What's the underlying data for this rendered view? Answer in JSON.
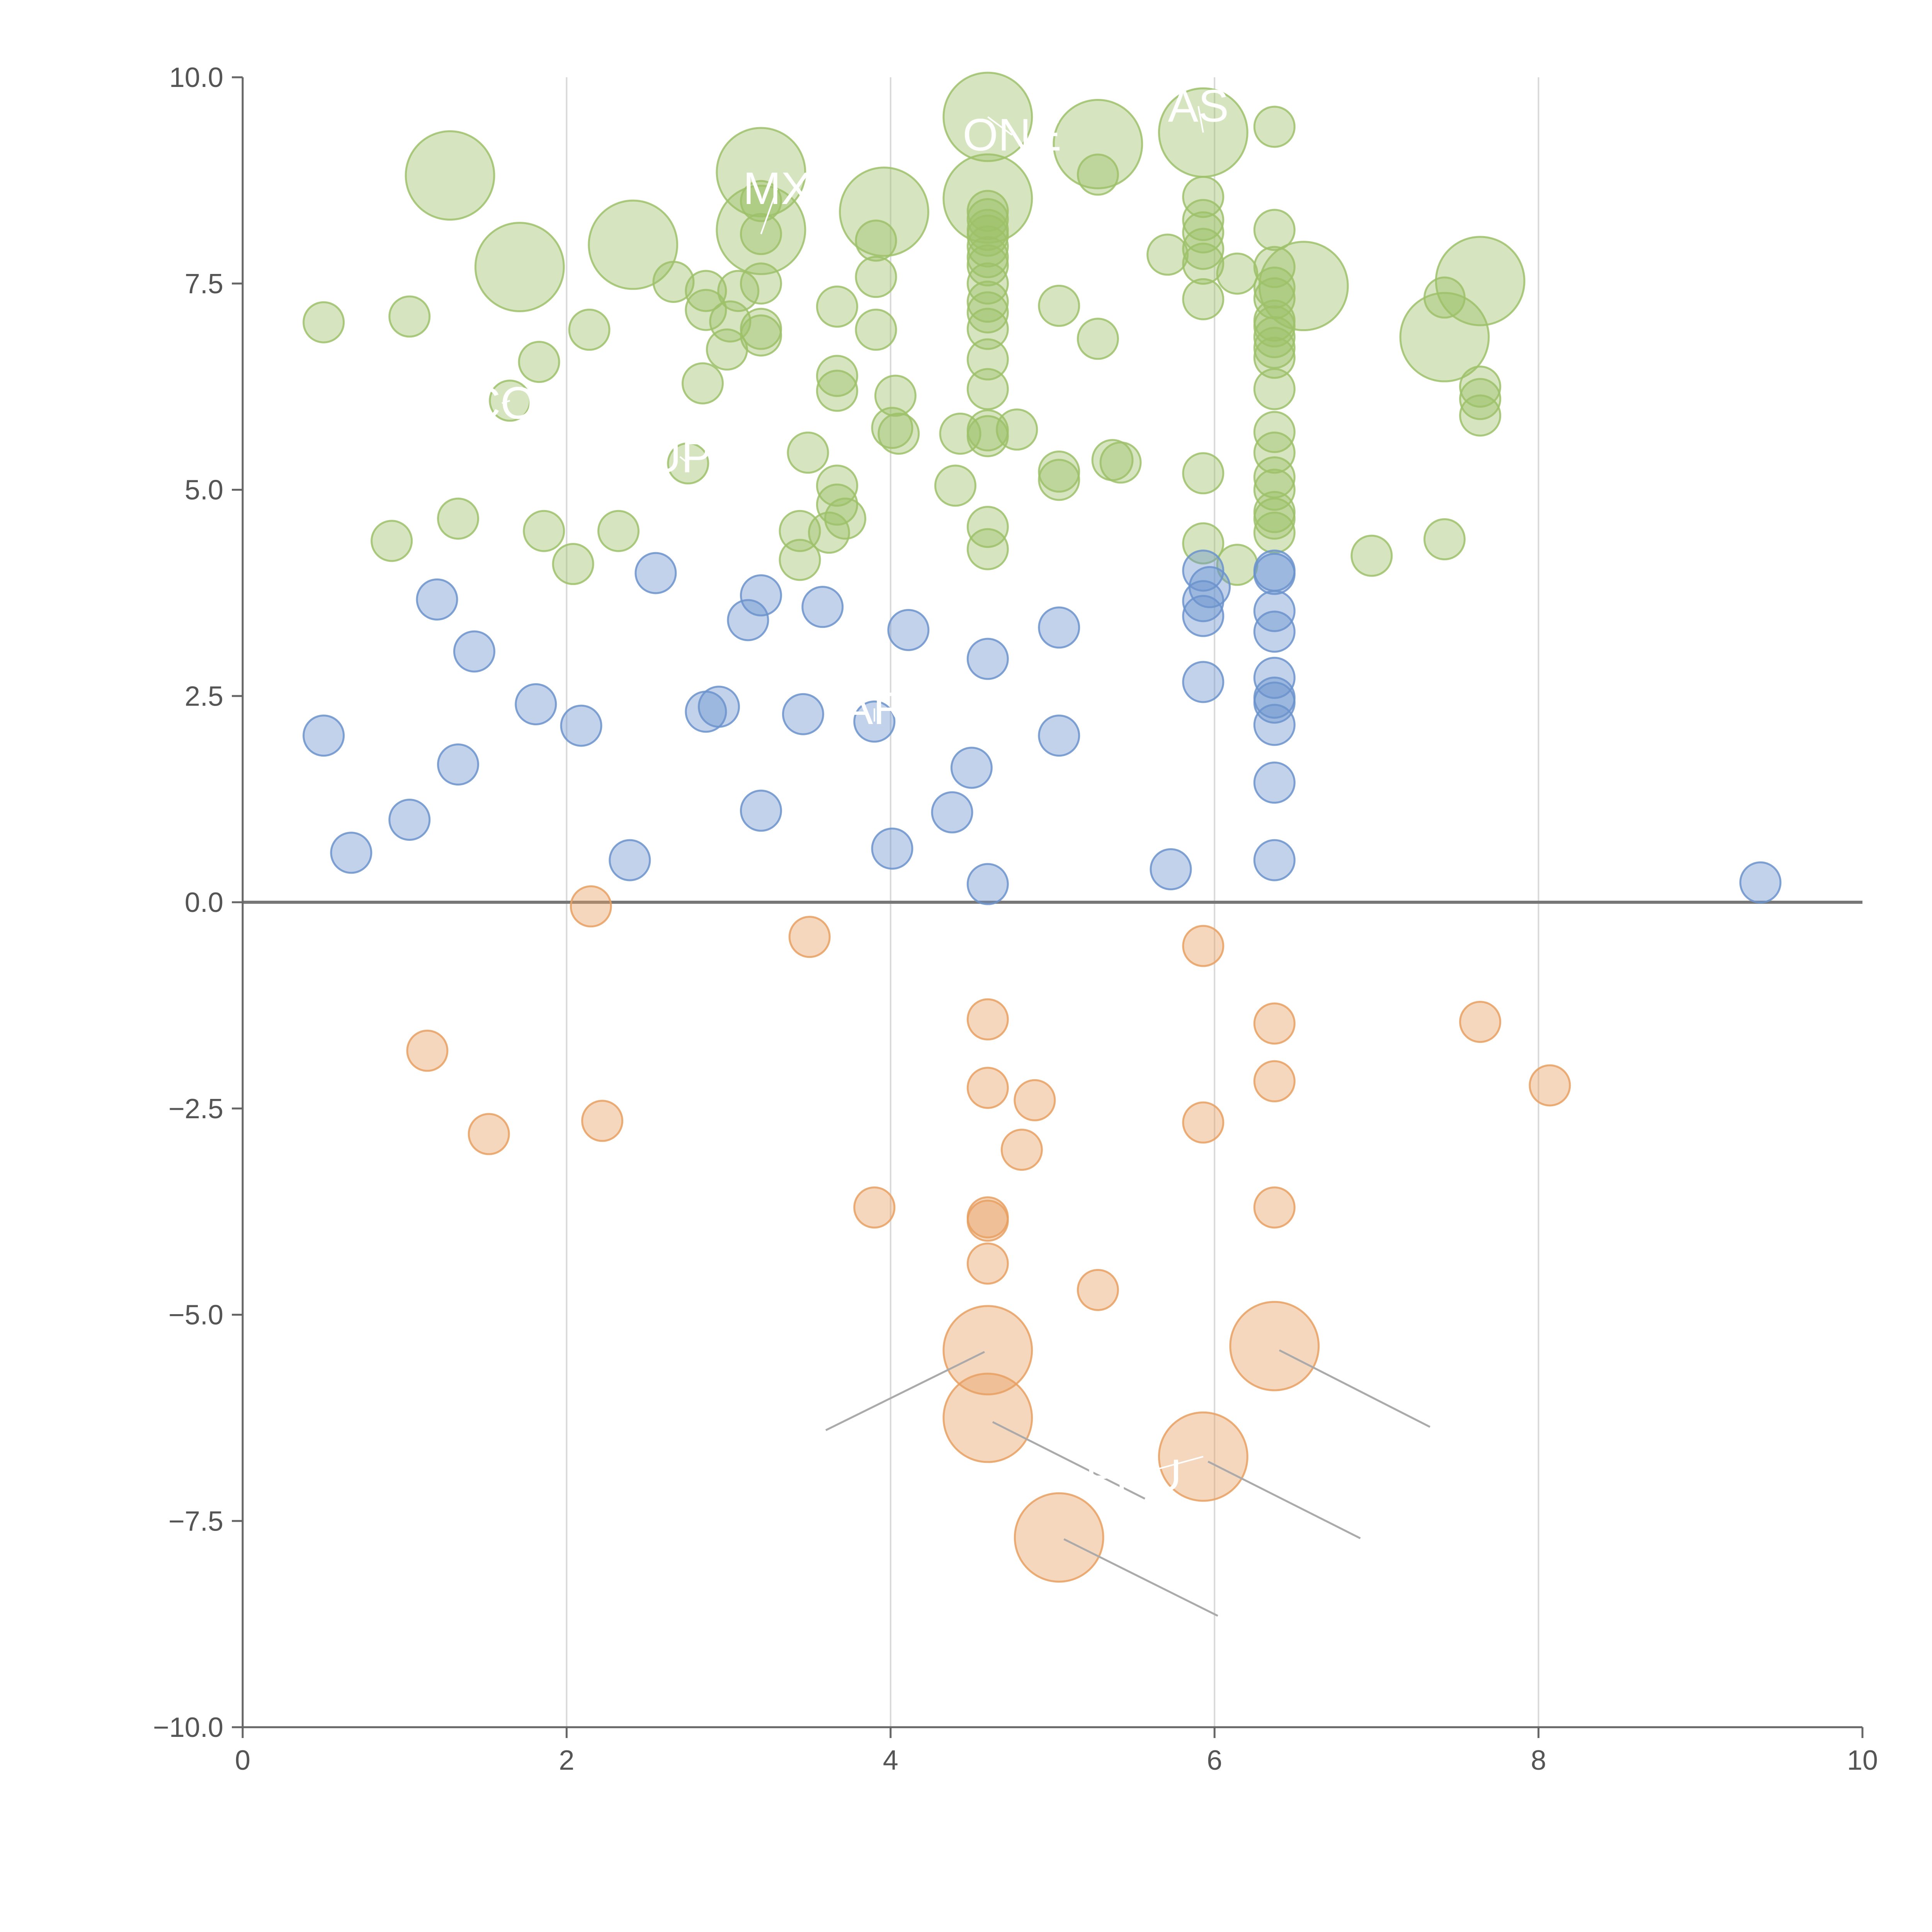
{
  "chart_data": {
    "type": "scatter",
    "title": "",
    "xlabel": "",
    "ylabel": "",
    "xlim": [
      0,
      10
    ],
    "ylim": [
      -10,
      10
    ],
    "x_ticks": [
      "0",
      "2",
      "4",
      "6",
      "8",
      "10"
    ],
    "y_ticks": [
      "10.0",
      "7.5",
      "5.0",
      "2.5",
      "0.0",
      "−2.5",
      "−5.0",
      "−7.5",
      "−10.0"
    ],
    "grid": "vertical",
    "zero_line": true,
    "colors": {
      "green": "#9dc16a",
      "blue": "#6b93cc",
      "orange": "#e8a062",
      "axis": "#666666",
      "grid": "#d9d9d9",
      "leader": "#aaaaaa"
    },
    "series": [
      {
        "name": "green",
        "color": "#9dc16a",
        "points": [
          [
            0.5,
            7.03,
            1
          ],
          [
            1.03,
            7.1,
            1
          ],
          [
            0.92,
            4.38,
            1
          ],
          [
            1.33,
            4.65,
            1
          ],
          [
            1.86,
            4.5,
            1
          ],
          [
            2.04,
            4.1,
            1
          ],
          [
            2.32,
            4.5,
            1
          ],
          [
            2.14,
            6.94,
            1
          ],
          [
            1.83,
            6.55,
            1
          ],
          [
            1.65,
            6.08,
            1
          ],
          [
            2.66,
            7.52,
            1
          ],
          [
            2.86,
            7.41,
            1
          ],
          [
            2.86,
            7.18,
            1
          ],
          [
            3.06,
            7.41,
            1
          ],
          [
            3.01,
            7.04,
            1
          ],
          [
            2.99,
            6.7,
            1
          ],
          [
            2.84,
            6.29,
            1
          ],
          [
            2.75,
            5.32,
            1
          ],
          [
            3.2,
            7.5,
            1
          ],
          [
            3.2,
            6.95,
            1
          ],
          [
            3.2,
            6.87,
            1
          ],
          [
            3.2,
            8.5,
            1
          ],
          [
            3.2,
            8.1,
            1
          ],
          [
            3.49,
            5.45,
            1
          ],
          [
            3.44,
            4.5,
            1
          ],
          [
            3.44,
            4.15,
            1
          ],
          [
            3.62,
            4.48,
            1
          ],
          [
            3.67,
            5.05,
            1
          ],
          [
            3.67,
            4.82,
            1
          ],
          [
            3.72,
            4.65,
            1
          ],
          [
            3.67,
            6.38,
            1
          ],
          [
            3.67,
            6.2,
            1
          ],
          [
            3.67,
            7.22,
            1
          ],
          [
            3.91,
            7.58,
            1
          ],
          [
            3.91,
            6.94,
            1
          ],
          [
            3.91,
            8.02,
            1
          ],
          [
            4.01,
            5.75,
            1
          ],
          [
            4.05,
            5.68,
            1
          ],
          [
            4.03,
            6.14,
            1
          ],
          [
            4.4,
            5.05,
            1
          ],
          [
            4.43,
            5.68,
            1
          ],
          [
            4.6,
            5.72,
            1
          ],
          [
            4.6,
            5.65,
            1
          ],
          [
            4.78,
            5.73,
            1
          ],
          [
            4.6,
            4.55,
            1
          ],
          [
            4.6,
            4.28,
            1
          ],
          [
            4.6,
            6.22,
            1
          ],
          [
            4.6,
            6.58,
            1
          ],
          [
            4.6,
            6.95,
            1
          ],
          [
            4.6,
            7.15,
            1
          ],
          [
            4.6,
            7.28,
            1
          ],
          [
            4.6,
            7.5,
            1
          ],
          [
            4.6,
            7.72,
            1
          ],
          [
            4.6,
            7.82,
            1
          ],
          [
            4.6,
            7.95,
            1
          ],
          [
            4.6,
            8.08,
            1
          ],
          [
            4.6,
            8.15,
            1
          ],
          [
            4.6,
            8.28,
            1
          ],
          [
            4.6,
            8.38,
            1
          ],
          [
            5.04,
            7.23,
            1
          ],
          [
            5.04,
            5.22,
            1
          ],
          [
            5.04,
            5.12,
            1
          ],
          [
            5.28,
            6.83,
            1
          ],
          [
            5.28,
            8.82,
            1
          ],
          [
            5.37,
            5.36,
            1
          ],
          [
            5.42,
            5.33,
            1
          ],
          [
            5.71,
            7.85,
            1
          ],
          [
            5.93,
            7.31,
            1
          ],
          [
            5.93,
            7.74,
            1
          ],
          [
            5.93,
            7.92,
            1
          ],
          [
            5.93,
            8.12,
            1
          ],
          [
            5.93,
            8.27,
            1
          ],
          [
            5.93,
            8.55,
            1
          ],
          [
            5.93,
            5.2,
            1
          ],
          [
            5.93,
            4.35,
            1
          ],
          [
            6.14,
            4.09,
            1
          ],
          [
            6.14,
            7.62,
            1
          ],
          [
            6.37,
            9.4,
            1
          ],
          [
            6.37,
            8.15,
            1
          ],
          [
            6.37,
            7.7,
            1
          ],
          [
            6.37,
            7.45,
            1
          ],
          [
            6.37,
            7.32,
            1
          ],
          [
            6.37,
            7.05,
            1
          ],
          [
            6.37,
            6.98,
            1
          ],
          [
            6.37,
            6.85,
            1
          ],
          [
            6.37,
            6.72,
            1
          ],
          [
            6.37,
            6.6,
            1
          ],
          [
            6.37,
            6.22,
            1
          ],
          [
            6.37,
            5.7,
            1
          ],
          [
            6.37,
            5.45,
            1
          ],
          [
            6.37,
            5.15,
            1
          ],
          [
            6.37,
            5.0,
            1
          ],
          [
            6.37,
            4.73,
            1
          ],
          [
            6.37,
            4.65,
            1
          ],
          [
            6.37,
            4.48,
            1
          ],
          [
            6.97,
            4.2,
            1
          ],
          [
            7.42,
            7.33,
            1
          ],
          [
            7.42,
            4.4,
            1
          ],
          [
            7.64,
            6.25,
            1
          ],
          [
            7.64,
            6.1,
            1
          ],
          [
            7.64,
            5.9,
            1
          ],
          [
            1.28,
            8.81,
            2.2
          ],
          [
            1.71,
            7.7,
            2.2
          ],
          [
            2.41,
            7.97,
            2.2
          ],
          [
            3.2,
            8.85,
            2.2
          ],
          [
            3.2,
            8.15,
            2.2
          ],
          [
            3.96,
            8.37,
            2.2
          ],
          [
            4.6,
            9.52,
            2.2
          ],
          [
            4.6,
            8.53,
            2.2
          ],
          [
            5.28,
            9.19,
            2.2
          ],
          [
            5.93,
            9.33,
            2.2
          ],
          [
            6.55,
            7.47,
            2.2
          ],
          [
            7.42,
            6.85,
            2.2
          ],
          [
            7.64,
            7.53,
            2.2
          ]
        ]
      },
      {
        "name": "blue",
        "color": "#6b93cc",
        "points": [
          [
            0.5,
            2.02,
            1
          ],
          [
            0.67,
            0.6,
            1
          ],
          [
            1.03,
            1.0,
            1
          ],
          [
            1.2,
            3.67,
            1
          ],
          [
            1.33,
            1.67,
            1
          ],
          [
            1.43,
            3.04,
            1
          ],
          [
            1.81,
            2.4,
            1
          ],
          [
            2.09,
            2.14,
            1
          ],
          [
            2.39,
            0.51,
            1
          ],
          [
            2.55,
            3.99,
            1
          ],
          [
            2.86,
            2.31,
            1
          ],
          [
            2.94,
            2.37,
            1
          ],
          [
            3.12,
            3.42,
            1
          ],
          [
            3.2,
            3.72,
            1
          ],
          [
            3.2,
            1.11,
            1
          ],
          [
            3.46,
            2.28,
            1
          ],
          [
            3.58,
            3.58,
            1
          ],
          [
            3.9,
            2.19,
            1
          ],
          [
            4.01,
            0.65,
            1
          ],
          [
            4.11,
            3.3,
            1
          ],
          [
            4.38,
            1.09,
            1
          ],
          [
            4.5,
            1.63,
            1
          ],
          [
            4.6,
            2.95,
            1
          ],
          [
            4.6,
            0.22,
            1
          ],
          [
            5.04,
            3.33,
            1
          ],
          [
            5.04,
            2.02,
            1
          ],
          [
            5.73,
            0.4,
            1
          ],
          [
            5.93,
            4.02,
            1
          ],
          [
            5.97,
            3.82,
            1
          ],
          [
            5.93,
            3.65,
            1
          ],
          [
            5.93,
            3.47,
            1
          ],
          [
            5.93,
            2.67,
            1
          ],
          [
            6.37,
            4.02,
            1
          ],
          [
            6.37,
            3.98,
            1
          ],
          [
            6.37,
            3.53,
            1
          ],
          [
            6.37,
            3.28,
            1
          ],
          [
            6.37,
            2.72,
            1
          ],
          [
            6.37,
            2.48,
            1
          ],
          [
            6.37,
            2.42,
            1
          ],
          [
            6.37,
            2.15,
            1
          ],
          [
            6.37,
            1.45,
            1
          ],
          [
            6.37,
            0.51,
            1
          ],
          [
            9.37,
            0.24,
            1
          ]
        ]
      },
      {
        "name": "orange",
        "color": "#e8a062",
        "points": [
          [
            2.15,
            -0.05,
            1
          ],
          [
            3.5,
            -0.42,
            1
          ],
          [
            1.14,
            -1.8,
            1
          ],
          [
            1.52,
            -2.81,
            1
          ],
          [
            2.22,
            -2.65,
            1
          ],
          [
            3.9,
            -3.7,
            1
          ],
          [
            4.6,
            -1.42,
            1
          ],
          [
            4.6,
            -2.25,
            1
          ],
          [
            4.89,
            -2.4,
            1
          ],
          [
            4.81,
            -3.0,
            1
          ],
          [
            4.6,
            -3.82,
            1
          ],
          [
            4.6,
            -3.86,
            1
          ],
          [
            4.6,
            -4.38,
            1
          ],
          [
            5.28,
            -4.7,
            1
          ],
          [
            5.93,
            -0.53,
            1
          ],
          [
            5.93,
            -2.67,
            1
          ],
          [
            6.37,
            -1.47,
            1
          ],
          [
            6.37,
            -2.17,
            1
          ],
          [
            6.37,
            -3.7,
            1
          ],
          [
            7.64,
            -1.45,
            1
          ],
          [
            8.07,
            -2.22,
            1
          ],
          [
            4.6,
            -5.43,
            2.2
          ],
          [
            4.6,
            -6.25,
            2.2
          ],
          [
            5.04,
            -7.7,
            2.2
          ],
          [
            5.93,
            -6.72,
            2.2
          ],
          [
            6.37,
            -5.38,
            2.2
          ]
        ]
      }
    ],
    "annotations": [
      {
        "text": "MX",
        "x": 3.3,
        "y": 8.65,
        "leader_to": [
          3.2,
          8.1
        ]
      },
      {
        "text": "ONE",
        "x": 4.75,
        "y": 9.3,
        "leader_to": [
          4.6,
          9.52
        ]
      },
      {
        "text": "AS",
        "x": 5.9,
        "y": 9.65,
        "leader_to": [
          5.93,
          9.33
        ]
      },
      {
        "text": "CO",
        "x": 1.6,
        "y": 6.05,
        "leader_to": [
          1.65,
          6.08
        ]
      },
      {
        "text": "UP",
        "x": 2.7,
        "y": 5.4,
        "leader_to": [
          2.75,
          5.32
        ]
      },
      {
        "text": "AR",
        "x": 3.9,
        "y": 2.35,
        "leader_to": [
          3.9,
          2.19
        ]
      },
      {
        "text": "PRU",
        "x": 5.5,
        "y": -6.95,
        "leader_to": [
          5.93,
          -6.72
        ]
      }
    ]
  }
}
